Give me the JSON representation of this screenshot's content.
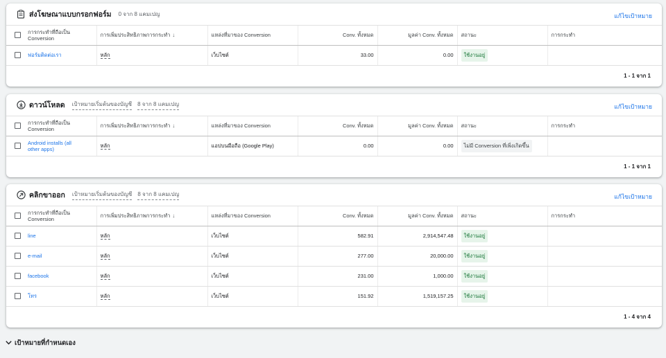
{
  "columns": {
    "action": "การกระทำที่ถือเป็น Conversion",
    "optimization": "การเพิ่มประสิทธิภาพการกระทำ",
    "source": "แหล่งที่มาของ Conversion",
    "conv_total": "Conv. ทั้งหมด",
    "conv_value": "มูลค่า Conv. ทั้งหมด",
    "status": "สถานะ",
    "actions": "การกระทำ"
  },
  "edit_label": "แก้ไขเป้าหมาย",
  "sections": [
    {
      "title": "ส่งโฆษณาแบบกรอกฟอร์ม",
      "icon": "clipboard-icon",
      "subtitle_default": "",
      "subtitle_count": "0 จาก 8 แคมเปญ",
      "pager": "1 - 1 จาก 1",
      "rows": [
        {
          "name": "ฟอร์มติดต่อเรา",
          "optimization": "หลัก",
          "source": "เว็บไซต์",
          "conv": "33.00",
          "value": "0.00",
          "status": "ใช้งานอยู่",
          "status_type": "ok"
        }
      ]
    },
    {
      "title": "ดาวน์โหลด",
      "icon": "download-icon",
      "subtitle_default": "เป้าหมายเริ่มต้นของบัญชี",
      "subtitle_count": "8 จาก 8 แคมเปญ",
      "pager": "1 - 1 จาก 1",
      "rows": [
        {
          "name": "Android installs (all other apps)",
          "optimization": "หลัก",
          "source": "แอปบนมือถือ (Google Play)",
          "conv": "0.00",
          "value": "0.00",
          "status": "ไม่มี Conversion ที่เพิ่งเกิดขึ้น",
          "status_type": "none"
        }
      ]
    },
    {
      "title": "คลิกขาออก",
      "icon": "outbound-arrow-icon",
      "subtitle_default": "เป้าหมายเริ่มต้นของบัญชี",
      "subtitle_count": "8 จาก 8 แคมเปญ",
      "pager": "1 - 4 จาก 4",
      "rows": [
        {
          "name": "line",
          "optimization": "หลัก",
          "source": "เว็บไซต์",
          "conv": "582.91",
          "value": "2,914,547.48",
          "status": "ใช้งานอยู่",
          "status_type": "ok"
        },
        {
          "name": "e-mail",
          "optimization": "หลัก",
          "source": "เว็บไซต์",
          "conv": "277.00",
          "value": "20,000.00",
          "status": "ใช้งานอยู่",
          "status_type": "ok"
        },
        {
          "name": "facebook",
          "optimization": "หลัก",
          "source": "เว็บไซต์",
          "conv": "231.00",
          "value": "1,000.00",
          "status": "ใช้งานอยู่",
          "status_type": "ok"
        },
        {
          "name": "โทร",
          "optimization": "หลัก",
          "source": "เว็บไซต์",
          "conv": "151.92",
          "value": "1,519,157.25",
          "status": "ใช้งานอยู่",
          "status_type": "ok"
        }
      ]
    }
  ],
  "footer": {
    "label": "เป้าหมายที่กำหนดเอง",
    "icon": "chevron-down-icon"
  }
}
